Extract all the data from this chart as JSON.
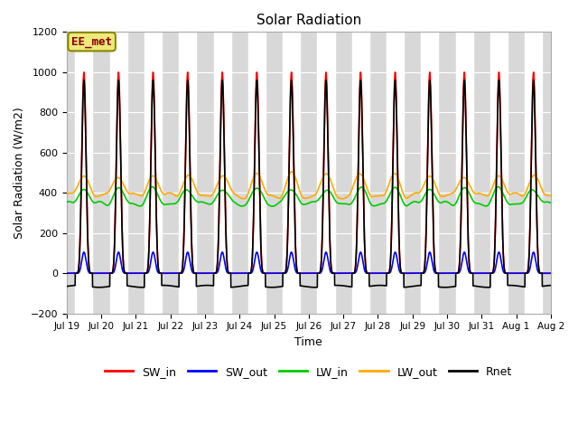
{
  "title": "Solar Radiation",
  "ylabel": "Solar Radiation (W/m2)",
  "xlabel": "Time",
  "ylim": [
    -200,
    1200
  ],
  "annotation_text": "EE_met",
  "plot_bg_color": "#d8d8d8",
  "grid_color": "#ffffff",
  "lines": {
    "SW_in": {
      "color": "#ff0000",
      "lw": 1.2
    },
    "SW_out": {
      "color": "#0000ff",
      "lw": 1.2
    },
    "LW_in": {
      "color": "#00cc00",
      "lw": 1.2
    },
    "LW_out": {
      "color": "#ffaa00",
      "lw": 1.2
    },
    "Rnet": {
      "color": "#000000",
      "lw": 1.2
    }
  },
  "n_days": 14,
  "SW_in_peak": 1000,
  "LW_in_day": 420,
  "LW_in_night": 345,
  "LW_out_day": 490,
  "LW_out_night": 385,
  "Rnet_peak": 960,
  "Rnet_night": -65,
  "xtick_labels": [
    "Jul 19",
    "Jul 20",
    "Jul 21",
    "Jul 22",
    "Jul 23",
    "Jul 24",
    "Jul 25",
    "Jul 26",
    "Jul 27",
    "Jul 28",
    "Jul 29",
    "Jul 30",
    "Jul 31",
    "Aug 1",
    "Aug 2"
  ],
  "ytick_values": [
    -200,
    0,
    200,
    400,
    600,
    800,
    1000,
    1200
  ],
  "day_rise": 0.25,
  "day_set": 0.75
}
